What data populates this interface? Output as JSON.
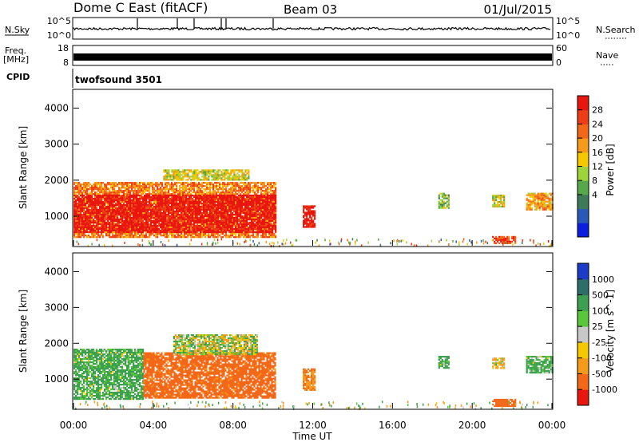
{
  "header": {
    "title": "Dome C East (fitACF)",
    "beam": "Beam 03",
    "date": "01/Jul/2015"
  },
  "strips": {
    "nsky_label": "N.Sky",
    "nsky_ticks": [
      "10^5",
      "10^0"
    ],
    "nsearch_label": "N.Search",
    "nsearch_ticks": [
      "10^5",
      "10^0"
    ],
    "freq_label_1": "Freq.",
    "freq_label_2": "[MHz]",
    "freq_ticks": [
      "18",
      "8"
    ],
    "nave_label": "Nave",
    "nave_ticks": [
      "60",
      "0"
    ],
    "cpid_label": "CPID",
    "cpid_value": "twofsound 3501"
  },
  "axes": {
    "ylabel": "Slant Range [km]",
    "xlabel": "Time UT",
    "yticks": [
      "4000",
      "3000",
      "2000",
      "1000"
    ],
    "xticks": [
      "00:00",
      "04:00",
      "08:00",
      "12:00",
      "16:00",
      "20:00",
      "00:00"
    ]
  },
  "power_scale": {
    "label": "Power [dB]",
    "ticks": [
      "28",
      "24",
      "20",
      "16",
      "12",
      "8",
      "4"
    ],
    "colors": [
      "#0a1ee0",
      "#2a58b8",
      "#3c7a5a",
      "#57a84a",
      "#9cd43a",
      "#f5c800",
      "#f59a1a",
      "#f26818",
      "#ec3d14",
      "#e8160e"
    ]
  },
  "velocity_scale": {
    "label": "Velocity [m s^-1]",
    "ticks": [
      "1000",
      "500",
      "100",
      "25",
      "-25",
      "-100",
      "-500",
      "-1000"
    ],
    "colors": [
      "#1a3cc8",
      "#2e6e6a",
      "#3ca050",
      "#58c83a",
      "#c8c8c8",
      "#f5c800",
      "#f59a1a",
      "#f26818",
      "#e8160e"
    ]
  },
  "chart_data": [
    {
      "type": "heatmap",
      "panel": "power",
      "colorbar_label": "Power [dB]",
      "ylabel": "Slant Range [km]",
      "xlim_hours": [
        0,
        24
      ],
      "ylim_km": [
        180,
        4500
      ],
      "patches": [
        {
          "t0": 0.0,
          "t1": 10.1,
          "r0": 400,
          "r1": 1950,
          "value_db": 22
        },
        {
          "t0": 0.0,
          "t1": 10.1,
          "r0": 550,
          "r1": 1600,
          "value_db": 30
        },
        {
          "t0": 4.5,
          "t1": 8.8,
          "r0": 2000,
          "r1": 2300,
          "value_db": 16
        },
        {
          "t0": 11.5,
          "t1": 12.1,
          "r0": 700,
          "r1": 1300,
          "value_db": 30
        },
        {
          "t0": 18.3,
          "t1": 18.8,
          "r0": 1250,
          "r1": 1650,
          "value_db": 12
        },
        {
          "t0": 21.0,
          "t1": 21.6,
          "r0": 1250,
          "r1": 1600,
          "value_db": 16
        },
        {
          "t0": 22.7,
          "t1": 24.0,
          "r0": 1200,
          "r1": 1650,
          "value_db": 20
        },
        {
          "t0": 21.0,
          "t1": 22.2,
          "r0": 250,
          "r1": 450,
          "value_db": 26
        }
      ]
    },
    {
      "type": "heatmap",
      "panel": "velocity",
      "colorbar_label": "Velocity [m s^-1]",
      "ylabel": "Slant Range [km]",
      "xlabel": "Time UT",
      "xlim_hours": [
        0,
        24
      ],
      "ylim_km": [
        180,
        4500
      ],
      "patches": [
        {
          "t0": 0.0,
          "t1": 3.5,
          "r0": 450,
          "r1": 1850,
          "value_ms": 100
        },
        {
          "t0": 3.5,
          "t1": 10.1,
          "r0": 500,
          "r1": 1750,
          "value_ms": -400
        },
        {
          "t0": 5.0,
          "t1": 9.2,
          "r0": 1700,
          "r1": 2250,
          "value_ms": 0
        },
        {
          "t0": 11.5,
          "t1": 12.1,
          "r0": 700,
          "r1": 1300,
          "value_ms": -300
        },
        {
          "t0": 18.3,
          "t1": 18.8,
          "r0": 1300,
          "r1": 1650,
          "value_ms": 100
        },
        {
          "t0": 21.0,
          "t1": 21.6,
          "r0": 1300,
          "r1": 1600,
          "value_ms": -50
        },
        {
          "t0": 22.7,
          "t1": 24.0,
          "r0": 1200,
          "r1": 1650,
          "value_ms": 100
        },
        {
          "t0": 21.0,
          "t1": 22.2,
          "r0": 250,
          "r1": 450,
          "value_ms": -500
        }
      ]
    }
  ]
}
